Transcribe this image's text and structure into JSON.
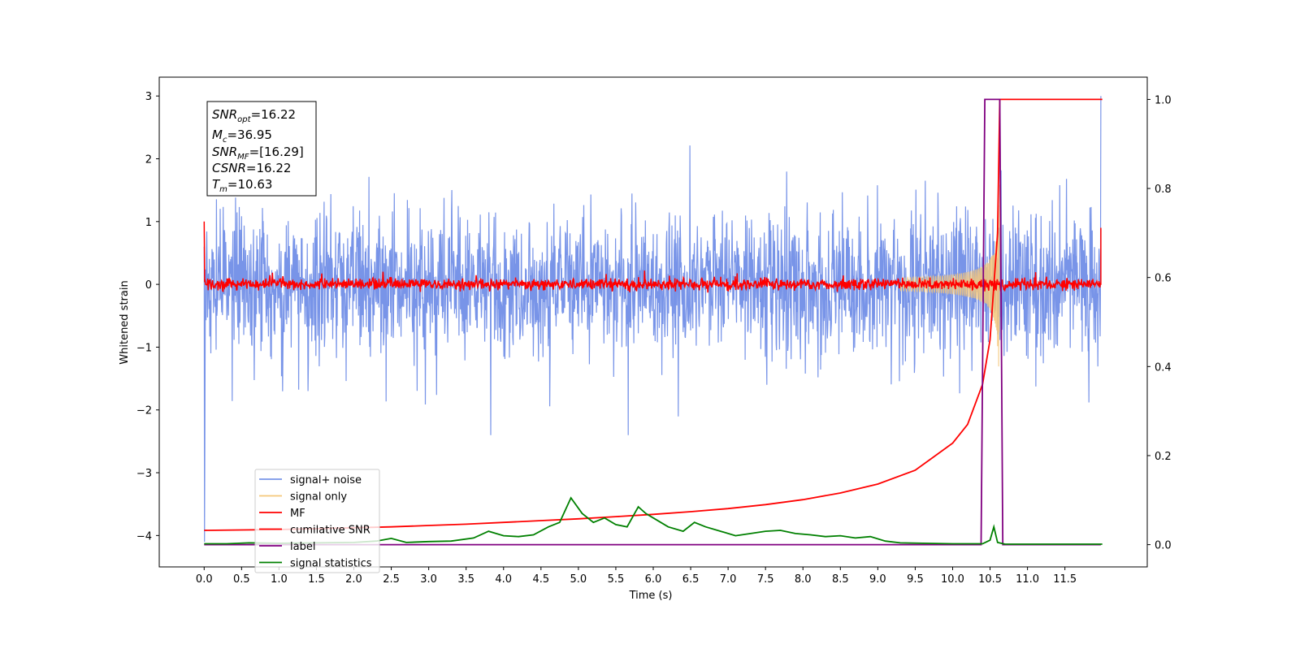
{
  "chart_data": {
    "type": "line",
    "xlabel": "Time (s)",
    "ylabel": "Whitened strain",
    "xlim": [
      -0.6,
      12.6
    ],
    "ylim": [
      -4.5,
      3.3
    ],
    "y2lim": [
      -0.05,
      1.05
    ],
    "x_ticks": [
      "0.0",
      "0.5",
      "1.0",
      "1.5",
      "2.0",
      "2.5",
      "3.0",
      "3.5",
      "4.0",
      "4.5",
      "5.0",
      "5.5",
      "6.0",
      "6.5",
      "7.0",
      "7.5",
      "8.0",
      "8.5",
      "9.0",
      "9.5",
      "10.0",
      "10.5",
      "11.0",
      "11.5"
    ],
    "y_ticks": [
      "3",
      "2",
      "1",
      "0",
      "−1",
      "−2",
      "−3",
      "−4"
    ],
    "y2_ticks": [
      "1.0",
      "0.8",
      "0.6",
      "0.4",
      "0.2",
      "0.0"
    ],
    "legend_position": "lower-left",
    "grid": false,
    "info_box": {
      "line1": {
        "sym": "SNR",
        "sub": "opt",
        "value": "=16.22"
      },
      "line2": {
        "sym": "M",
        "sub": "c",
        "value": "=36.95"
      },
      "line3": {
        "sym": "SNR",
        "sub": "MF",
        "value": "=[16.29]"
      },
      "line4": {
        "sym": "CSNR",
        "sub": "",
        "value": "=16.22"
      },
      "line5": {
        "sym": "T",
        "sub": "m",
        "value": "=10.63"
      }
    },
    "series": [
      {
        "name": "signal+ noise",
        "color": "#7894e8",
        "axis": "left",
        "description": "whitened noise, amplitude approx ±1.8, spikes to ±2.5, glitch at t=0 to -4.1"
      },
      {
        "name": "signal only",
        "color": "#f5c77a",
        "axis": "left",
        "description": "chirp growing from ~10.0 s, peak ~±1.5 near 10.55 s, ends 10.63 s"
      },
      {
        "name": "MF",
        "color": "#ff0000",
        "axis": "left",
        "description": "matched filter output, amplitude approx ±0.15, edge 1.0 at t=0 and 0.9 at t=12"
      },
      {
        "name": "cumilative SNR",
        "color": "#ff0000",
        "axis": "right",
        "x": [
          0.0,
          0.5,
          1,
          1.5,
          2,
          2.5,
          3,
          3.5,
          4,
          4.5,
          5,
          5.5,
          6,
          6.5,
          7,
          7.5,
          8,
          8.5,
          9,
          9.5,
          10,
          10.2,
          10.4,
          10.5,
          10.6,
          10.63,
          12.0
        ],
        "values": [
          0.032,
          0.033,
          0.034,
          0.036,
          0.038,
          0.04,
          0.043,
          0.046,
          0.05,
          0.054,
          0.058,
          0.063,
          0.068,
          0.074,
          0.081,
          0.09,
          0.101,
          0.116,
          0.136,
          0.167,
          0.228,
          0.27,
          0.36,
          0.46,
          0.7,
          1.0,
          1.0
        ]
      },
      {
        "name": "label",
        "color": "#800080",
        "axis": "right",
        "x": [
          0,
          10.38,
          10.43,
          10.63,
          10.67,
          11.98
        ],
        "values": [
          0,
          0,
          1,
          1,
          0,
          0
        ]
      },
      {
        "name": "signal statistics",
        "color": "#008000",
        "axis": "right",
        "x": [
          0,
          0.3,
          0.6,
          1.0,
          1.5,
          2.0,
          2.3,
          2.5,
          2.7,
          3.0,
          3.3,
          3.6,
          3.8,
          4.0,
          4.2,
          4.4,
          4.6,
          4.75,
          4.9,
          5.05,
          5.2,
          5.35,
          5.5,
          5.65,
          5.8,
          5.9,
          6.0,
          6.2,
          6.4,
          6.55,
          6.7,
          6.9,
          7.1,
          7.3,
          7.5,
          7.7,
          7.9,
          8.1,
          8.3,
          8.5,
          8.7,
          8.9,
          9.1,
          9.3,
          9.6,
          10.0,
          10.4,
          10.5,
          10.55,
          10.6,
          10.7,
          11.0,
          12.0
        ],
        "values": [
          0.002,
          0.002,
          0.004,
          0.003,
          0.004,
          0.005,
          0.008,
          0.014,
          0.005,
          0.007,
          0.008,
          0.015,
          0.03,
          0.02,
          0.018,
          0.022,
          0.04,
          0.05,
          0.105,
          0.07,
          0.05,
          0.06,
          0.045,
          0.04,
          0.085,
          0.07,
          0.06,
          0.04,
          0.03,
          0.05,
          0.04,
          0.03,
          0.02,
          0.025,
          0.03,
          0.032,
          0.025,
          0.022,
          0.018,
          0.02,
          0.015,
          0.018,
          0.008,
          0.004,
          0.003,
          0.002,
          0.002,
          0.01,
          0.04,
          0.005,
          0.001,
          0.001,
          0.001
        ]
      }
    ]
  }
}
